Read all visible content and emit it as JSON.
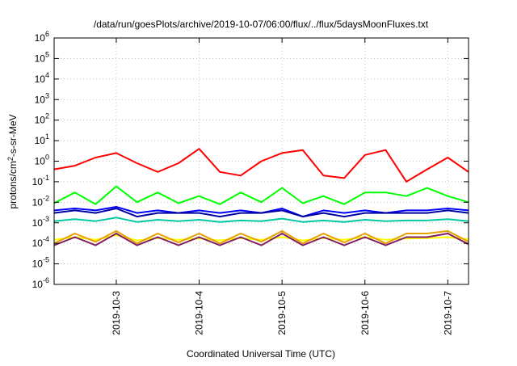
{
  "chart_data": {
    "type": "line",
    "title": "/data/run/goesPlots/archive/2019-10-07/06:00/flux/../flux/5daysMoonFluxes.txt",
    "xlabel": "Coordinated Universal Time (UTC)",
    "ylabel": {
      "before": "protons/cm",
      "sup": "2",
      "after": "-s-sr-MeV"
    },
    "y_scale": "log",
    "ylim": [
      1e-06,
      1000000.0
    ],
    "y_ticks": [
      {
        "base": "10",
        "exp": "-6",
        "value": 1e-06
      },
      {
        "base": "10",
        "exp": "-5",
        "value": 1e-05
      },
      {
        "base": "10",
        "exp": "-4",
        "value": 0.0001
      },
      {
        "base": "10",
        "exp": "-3",
        "value": 0.001
      },
      {
        "base": "10",
        "exp": "-2",
        "value": 0.01
      },
      {
        "base": "10",
        "exp": "-1",
        "value": 0.1
      },
      {
        "base": "10",
        "exp": "0",
        "value": 1
      },
      {
        "base": "10",
        "exp": "1",
        "value": 10
      },
      {
        "base": "10",
        "exp": "2",
        "value": 100
      },
      {
        "base": "10",
        "exp": "3",
        "value": 1000
      },
      {
        "base": "10",
        "exp": "4",
        "value": 10000
      },
      {
        "base": "10",
        "exp": "5",
        "value": 100000
      },
      {
        "base": "10",
        "exp": "6",
        "value": 1000000
      }
    ],
    "xlim": [
      "2019-10-02 06:00",
      "2019-10-07 06:00"
    ],
    "x_ticks": [
      "2019-10-3",
      "2019-10-4",
      "2019-10-5",
      "2019-10-6",
      "2019-10-7"
    ],
    "grid": true,
    "series": [
      {
        "color": "#ff0000",
        "x": [
          "2019-10-02 06:00",
          "2019-10-02 12:00",
          "2019-10-02 18:00",
          "2019-10-03 00:00",
          "2019-10-03 06:00",
          "2019-10-03 12:00",
          "2019-10-03 18:00",
          "2019-10-04 00:00",
          "2019-10-04 06:00",
          "2019-10-04 12:00",
          "2019-10-04 18:00",
          "2019-10-05 00:00",
          "2019-10-05 06:00",
          "2019-10-05 12:00",
          "2019-10-05 18:00",
          "2019-10-06 00:00",
          "2019-10-06 06:00",
          "2019-10-06 12:00",
          "2019-10-06 18:00",
          "2019-10-07 00:00",
          "2019-10-07 06:00"
        ],
        "values": [
          0.4,
          0.6,
          1.5,
          2.5,
          0.8,
          0.3,
          0.8,
          4.0,
          0.3,
          0.2,
          1.0,
          2.5,
          3.5,
          0.2,
          0.15,
          2.0,
          3.5,
          0.1,
          0.4,
          1.5,
          0.3
        ]
      },
      {
        "color": "#00ff00",
        "x": [
          "2019-10-02 06:00",
          "2019-10-02 12:00",
          "2019-10-02 18:00",
          "2019-10-03 00:00",
          "2019-10-03 06:00",
          "2019-10-03 12:00",
          "2019-10-03 18:00",
          "2019-10-04 00:00",
          "2019-10-04 06:00",
          "2019-10-04 12:00",
          "2019-10-04 18:00",
          "2019-10-05 00:00",
          "2019-10-05 06:00",
          "2019-10-05 12:00",
          "2019-10-05 18:00",
          "2019-10-06 00:00",
          "2019-10-06 06:00",
          "2019-10-06 12:00",
          "2019-10-06 18:00",
          "2019-10-07 00:00",
          "2019-10-07 06:00"
        ],
        "values": [
          0.009,
          0.03,
          0.008,
          0.06,
          0.01,
          0.03,
          0.009,
          0.02,
          0.008,
          0.03,
          0.01,
          0.05,
          0.009,
          0.02,
          0.008,
          0.03,
          0.03,
          0.02,
          0.05,
          0.02,
          0.01
        ]
      },
      {
        "color": "#0000ff",
        "x": [
          "2019-10-02 06:00",
          "2019-10-02 12:00",
          "2019-10-02 18:00",
          "2019-10-03 00:00",
          "2019-10-03 06:00",
          "2019-10-03 12:00",
          "2019-10-03 18:00",
          "2019-10-04 00:00",
          "2019-10-04 06:00",
          "2019-10-04 12:00",
          "2019-10-04 18:00",
          "2019-10-05 00:00",
          "2019-10-05 06:00",
          "2019-10-05 12:00",
          "2019-10-05 18:00",
          "2019-10-06 00:00",
          "2019-10-06 06:00",
          "2019-10-06 12:00",
          "2019-10-06 18:00",
          "2019-10-07 00:00",
          "2019-10-07 06:00"
        ],
        "values": [
          0.004,
          0.005,
          0.004,
          0.006,
          0.003,
          0.004,
          0.003,
          0.004,
          0.003,
          0.004,
          0.003,
          0.005,
          0.002,
          0.004,
          0.003,
          0.004,
          0.003,
          0.004,
          0.004,
          0.005,
          0.004
        ]
      },
      {
        "color": "#0000a0",
        "x": [
          "2019-10-02 06:00",
          "2019-10-02 12:00",
          "2019-10-02 18:00",
          "2019-10-03 00:00",
          "2019-10-03 06:00",
          "2019-10-03 12:00",
          "2019-10-03 18:00",
          "2019-10-04 00:00",
          "2019-10-04 06:00",
          "2019-10-04 12:00",
          "2019-10-04 18:00",
          "2019-10-05 00:00",
          "2019-10-05 06:00",
          "2019-10-05 12:00",
          "2019-10-05 18:00",
          "2019-10-06 00:00",
          "2019-10-06 06:00",
          "2019-10-06 12:00",
          "2019-10-06 18:00",
          "2019-10-07 00:00",
          "2019-10-07 06:00"
        ],
        "values": [
          0.003,
          0.004,
          0.003,
          0.005,
          0.002,
          0.003,
          0.003,
          0.003,
          0.002,
          0.003,
          0.003,
          0.004,
          0.002,
          0.003,
          0.002,
          0.003,
          0.003,
          0.003,
          0.003,
          0.004,
          0.003
        ]
      },
      {
        "color": "#00c8a0",
        "x": [
          "2019-10-02 06:00",
          "2019-10-02 12:00",
          "2019-10-02 18:00",
          "2019-10-03 00:00",
          "2019-10-03 06:00",
          "2019-10-03 12:00",
          "2019-10-03 18:00",
          "2019-10-04 00:00",
          "2019-10-04 06:00",
          "2019-10-04 12:00",
          "2019-10-04 18:00",
          "2019-10-05 00:00",
          "2019-10-05 06:00",
          "2019-10-05 12:00",
          "2019-10-05 18:00",
          "2019-10-06 00:00",
          "2019-10-06 06:00",
          "2019-10-06 12:00",
          "2019-10-06 18:00",
          "2019-10-07 00:00",
          "2019-10-07 06:00"
        ],
        "values": [
          0.0012,
          0.0015,
          0.0012,
          0.0018,
          0.0011,
          0.0014,
          0.0012,
          0.0014,
          0.0011,
          0.0013,
          0.0012,
          0.0016,
          0.0011,
          0.0013,
          0.0011,
          0.0014,
          0.0012,
          0.0013,
          0.0013,
          0.0015,
          0.0012
        ]
      },
      {
        "color": "#ffff00",
        "x": [
          "2019-10-02 06:00",
          "2019-10-02 12:00",
          "2019-10-02 18:00",
          "2019-10-03 00:00",
          "2019-10-03 06:00",
          "2019-10-03 12:00",
          "2019-10-03 18:00",
          "2019-10-04 00:00",
          "2019-10-04 06:00",
          "2019-10-04 12:00",
          "2019-10-04 18:00",
          "2019-10-05 00:00",
          "2019-10-05 06:00",
          "2019-10-05 12:00",
          "2019-10-05 18:00",
          "2019-10-06 00:00",
          "2019-10-06 06:00",
          "2019-10-06 12:00",
          "2019-10-06 18:00",
          "2019-10-07 00:00",
          "2019-10-07 06:00"
        ],
        "values": [
          0.00015,
          0.0002,
          0.00015,
          0.00025,
          0.00014,
          0.00018,
          0.00015,
          0.00017,
          0.00014,
          0.00018,
          0.00015,
          0.0002,
          0.00014,
          0.00018,
          0.00015,
          0.0002,
          0.00015,
          0.00017,
          0.00018,
          0.0002,
          0.00016
        ]
      },
      {
        "color": "#e8a000",
        "x": [
          "2019-10-02 06:00",
          "2019-10-02 12:00",
          "2019-10-02 18:00",
          "2019-10-03 00:00",
          "2019-10-03 06:00",
          "2019-10-03 12:00",
          "2019-10-03 18:00",
          "2019-10-04 00:00",
          "2019-10-04 06:00",
          "2019-10-04 12:00",
          "2019-10-04 18:00",
          "2019-10-05 00:00",
          "2019-10-05 06:00",
          "2019-10-05 12:00",
          "2019-10-05 18:00",
          "2019-10-06 00:00",
          "2019-10-06 06:00",
          "2019-10-06 12:00",
          "2019-10-06 18:00",
          "2019-10-07 00:00",
          "2019-10-07 06:00"
        ],
        "values": [
          0.0001,
          0.0003,
          0.00012,
          0.0004,
          0.0001,
          0.0003,
          0.00011,
          0.0003,
          0.0001,
          0.0003,
          0.00012,
          0.0004,
          0.0001,
          0.0003,
          0.00011,
          0.0003,
          0.0001,
          0.0003,
          0.0003,
          0.0004,
          0.00012
        ]
      },
      {
        "color": "#802060",
        "x": [
          "2019-10-02 06:00",
          "2019-10-02 12:00",
          "2019-10-02 18:00",
          "2019-10-03 00:00",
          "2019-10-03 06:00",
          "2019-10-03 12:00",
          "2019-10-03 18:00",
          "2019-10-04 00:00",
          "2019-10-04 06:00",
          "2019-10-04 12:00",
          "2019-10-04 18:00",
          "2019-10-05 00:00",
          "2019-10-05 06:00",
          "2019-10-05 12:00",
          "2019-10-05 18:00",
          "2019-10-06 00:00",
          "2019-10-06 06:00",
          "2019-10-06 12:00",
          "2019-10-06 18:00",
          "2019-10-07 00:00",
          "2019-10-07 06:00"
        ],
        "values": [
          8e-05,
          0.0002,
          8e-05,
          0.0003,
          8e-05,
          0.0002,
          8e-05,
          0.0002,
          8e-05,
          0.0002,
          8e-05,
          0.0003,
          8e-05,
          0.0002,
          8e-05,
          0.0002,
          8e-05,
          0.0002,
          0.0002,
          0.0003,
          9e-05
        ]
      }
    ]
  }
}
